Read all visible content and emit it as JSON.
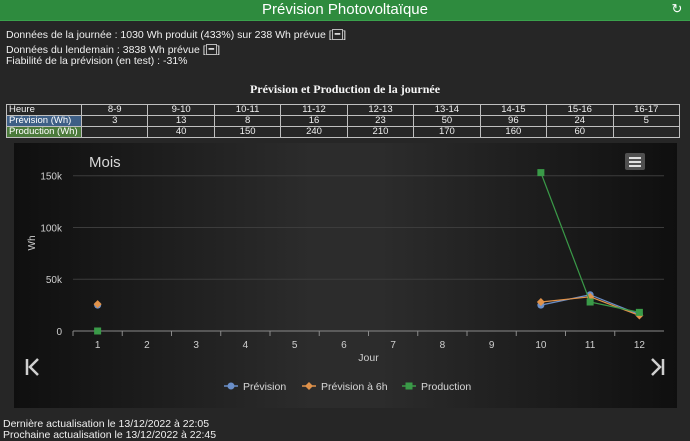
{
  "header": {
    "title": "Prévision Photovoltaïque",
    "refresh_icon": "refresh-icon"
  },
  "info": {
    "line1_text": "Données de la journée  : 1030 Wh produit (433%) sur 238 Wh prévue [",
    "line1_button": "━",
    "line1_close": "]",
    "line2_text": "Données du lendemain : 3838 Wh prévue [",
    "line2_button": "━",
    "line2_close": "]",
    "line3_text": "Fiabilité de la prévision (en test) : -31%"
  },
  "table": {
    "title": "Prévision et Production de la journée",
    "header_label": "Heure",
    "hours": [
      "8-9",
      "9-10",
      "10-11",
      "11-12",
      "12-13",
      "13-14",
      "14-15",
      "15-16",
      "16-17"
    ],
    "prevision_label": "Prévision (Wh)",
    "prevision": [
      "3",
      "13",
      "8",
      "16",
      "23",
      "50",
      "96",
      "24",
      "5"
    ],
    "production_label": "Production (Wh)",
    "production": [
      "",
      "40",
      "150",
      "240",
      "210",
      "170",
      "160",
      "60",
      ""
    ]
  },
  "chart_data": {
    "type": "line",
    "title": "Mois",
    "xlabel": "Jour",
    "ylabel": "Wh",
    "x": [
      1,
      2,
      3,
      4,
      5,
      6,
      7,
      8,
      9,
      10,
      11,
      12
    ],
    "ylim": [
      0,
      170000
    ],
    "yticks": [
      0,
      50000,
      100000,
      150000
    ],
    "ytick_labels": [
      "0",
      "50k",
      "100k",
      "150k"
    ],
    "grid": true,
    "legend_position": "bottom-center",
    "series": [
      {
        "name": "Prévision",
        "color": "#6a8fc9",
        "marker": "circle",
        "points": [
          [
            1,
            25000
          ],
          [
            10,
            25000
          ],
          [
            11,
            35000
          ],
          [
            12,
            16000
          ]
        ]
      },
      {
        "name": "Prévision à 6h",
        "color": "#e0924a",
        "marker": "diamond",
        "points": [
          [
            1,
            26000
          ],
          [
            10,
            28000
          ],
          [
            11,
            33000
          ],
          [
            12,
            15000
          ]
        ]
      },
      {
        "name": "Production",
        "color": "#3a9a48",
        "marker": "square",
        "points": [
          [
            1,
            0
          ],
          [
            10,
            153000
          ],
          [
            11,
            28000
          ],
          [
            12,
            18000
          ]
        ]
      }
    ]
  },
  "chart_ui": {
    "menu_icon": "hamburger-menu-icon",
    "prev_icon": "first-page-icon",
    "next_icon": "last-page-icon"
  },
  "footer": {
    "last_update": "Dernière actualisation le 13/12/2022 à 22:05",
    "next_update": "Prochaine actualisation le 13/12/2022 à 22:45"
  }
}
